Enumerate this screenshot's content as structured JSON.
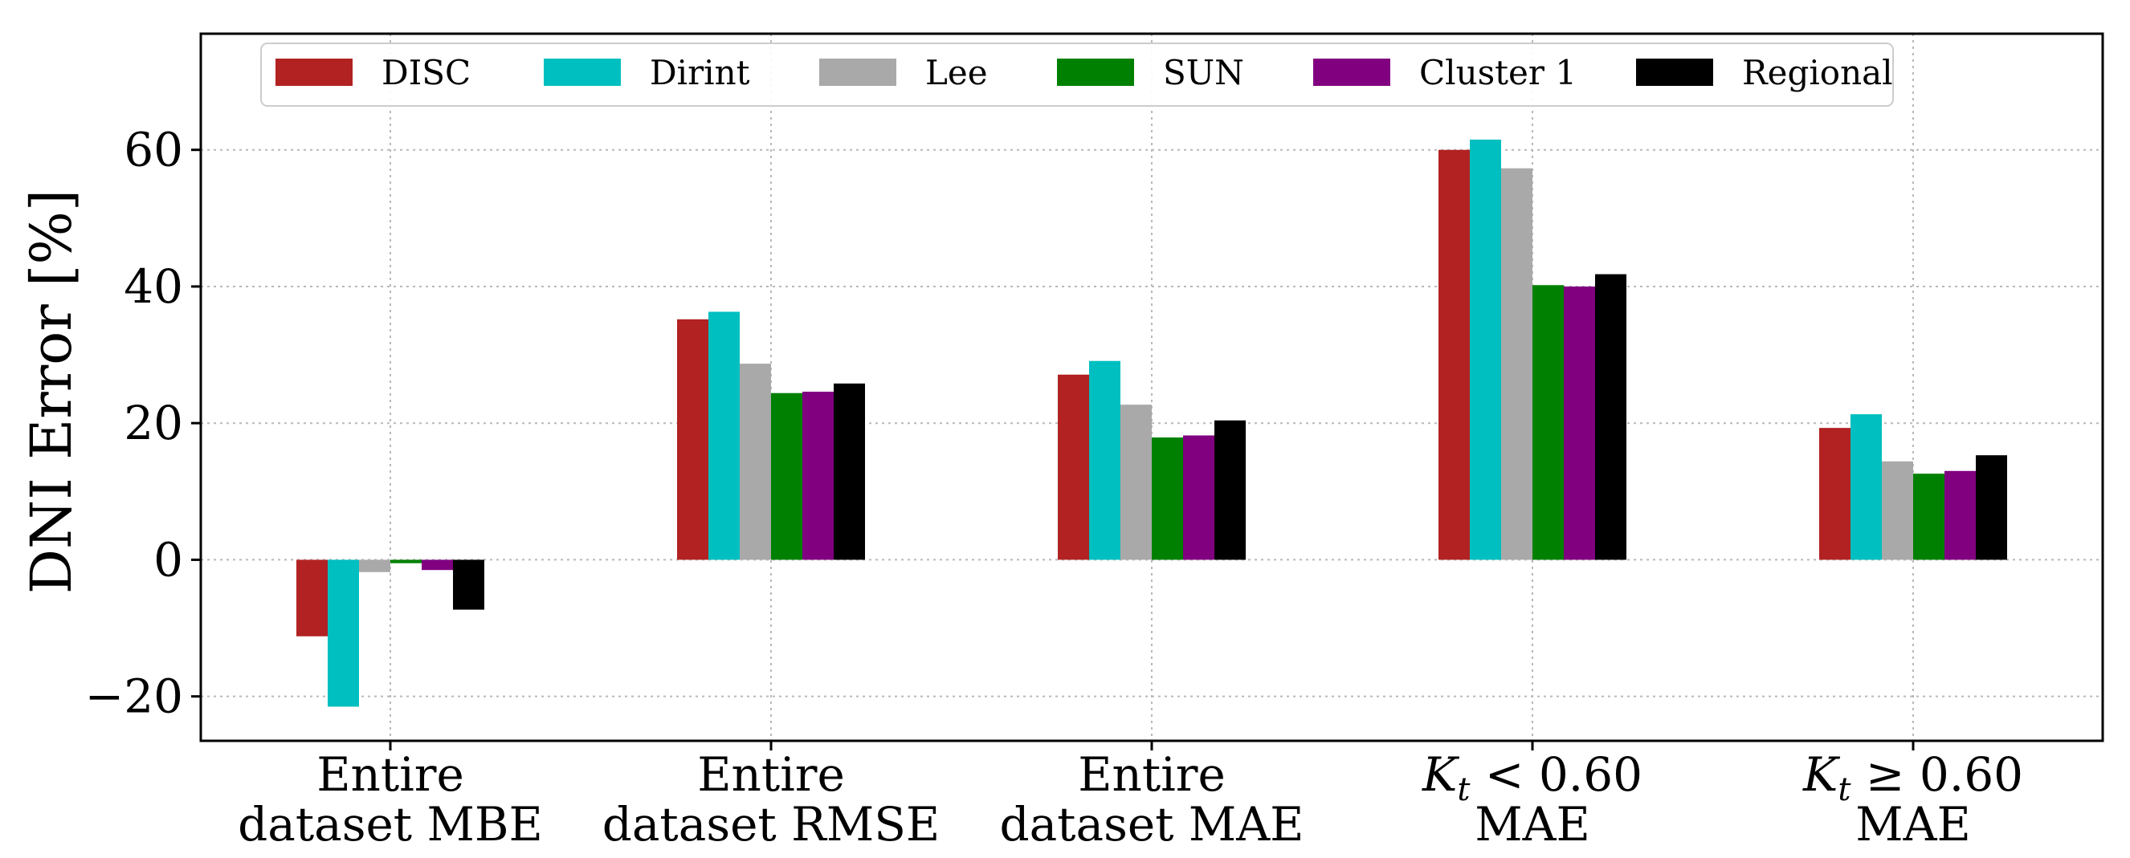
{
  "chart_data": {
    "type": "bar",
    "ylabel": "DNI Error [%]",
    "xlabel": "",
    "ylim": [
      -26.5,
      77
    ],
    "yticks": [
      -20,
      0,
      20,
      40,
      60
    ],
    "ytick_labels": [
      "−20",
      "0",
      "20",
      "40",
      "60"
    ],
    "grid": true,
    "legend_position": "top",
    "categories": [
      {
        "line1": "Entire",
        "line2": "dataset MBE"
      },
      {
        "line1": "Entire",
        "line2": "dataset RMSE"
      },
      {
        "line1": "Entire",
        "line2": "dataset MAE"
      },
      {
        "line1": "K",
        "line1_sub": "t",
        "line1_rest": " < 0.60",
        "line2": "MAE"
      },
      {
        "line1": "K",
        "line1_sub": "t",
        "line1_rest": " ≥ 0.60",
        "line2": "MAE"
      }
    ],
    "series": [
      {
        "name": "DISC",
        "color": "#b22222",
        "values": [
          -11.2,
          35.2,
          27.1,
          60.0,
          19.3
        ]
      },
      {
        "name": "Dirint",
        "color": "#00bfc0",
        "values": [
          -21.5,
          36.3,
          29.1,
          61.5,
          21.3
        ]
      },
      {
        "name": "Lee",
        "color": "#a9a9a9",
        "values": [
          -1.8,
          28.7,
          22.7,
          57.3,
          14.4
        ]
      },
      {
        "name": "SUN",
        "color": "#008000",
        "values": [
          -0.5,
          24.4,
          17.9,
          40.2,
          12.6
        ]
      },
      {
        "name": "Cluster 1",
        "color": "#800080",
        "values": [
          -1.5,
          24.6,
          18.2,
          40.0,
          13.0
        ]
      },
      {
        "name": "Regional",
        "color": "#000000",
        "values": [
          -7.3,
          25.8,
          20.4,
          41.8,
          15.3
        ]
      }
    ]
  }
}
